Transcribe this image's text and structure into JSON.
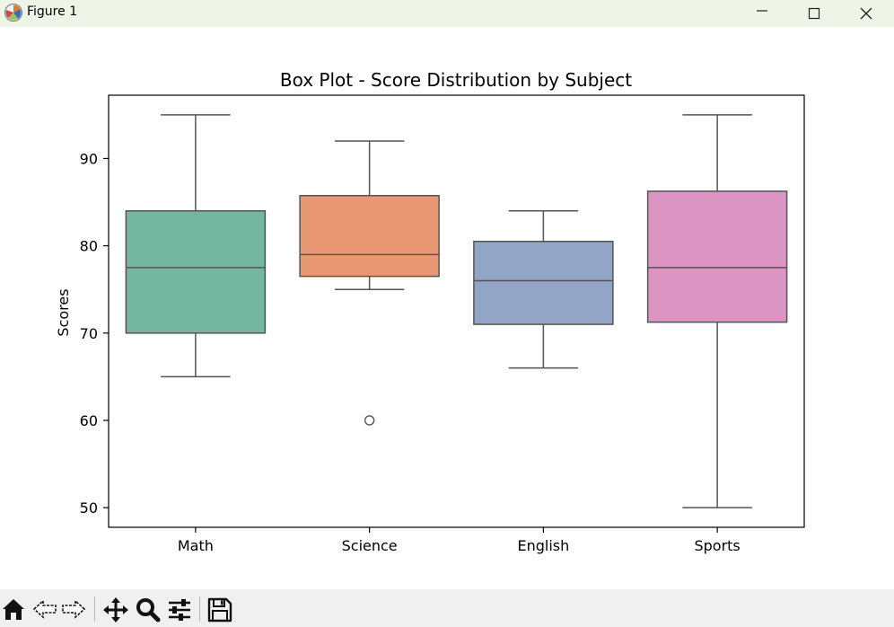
{
  "window": {
    "title": "Figure 1",
    "app_icon": "matplotlib-logo-icon",
    "controls": [
      "minimize-icon",
      "maximize-icon",
      "close-icon"
    ]
  },
  "toolbar": {
    "buttons": [
      "home-icon",
      "back-arrow-icon",
      "forward-arrow-icon",
      "pan-move-icon",
      "zoom-magnifier-icon",
      "configure-subplots-icon",
      "save-floppy-icon"
    ]
  },
  "chart_data": {
    "type": "box",
    "title": "Box Plot - Score Distribution by Subject",
    "xlabel": "",
    "ylabel": "Scores",
    "categories": [
      "Math",
      "Science",
      "English",
      "Sports"
    ],
    "boxes": [
      {
        "category": "Math",
        "whisker_low": 65,
        "q1": 70,
        "median": 77.5,
        "q3": 84,
        "whisker_high": 95,
        "outliers": [],
        "color": "#74b6a0"
      },
      {
        "category": "Science",
        "whisker_low": 75,
        "q1": 76.5,
        "median": 79,
        "q3": 85.75,
        "whisker_high": 92,
        "outliers": [
          60
        ],
        "color": "#e99874"
      },
      {
        "category": "English",
        "whisker_low": 66,
        "q1": 71,
        "median": 76,
        "q3": 80.5,
        "whisker_high": 84,
        "outliers": [],
        "color": "#93a5c6"
      },
      {
        "category": "Sports",
        "whisker_low": 50,
        "q1": 71.25,
        "median": 77.5,
        "q3": 86.25,
        "whisker_high": 95,
        "outliers": [],
        "color": "#dc95c2"
      }
    ],
    "yticks": [
      50,
      60,
      70,
      80,
      90
    ],
    "ylim": [
      47.75,
      97.25
    ],
    "grid": false,
    "legend": "none"
  }
}
